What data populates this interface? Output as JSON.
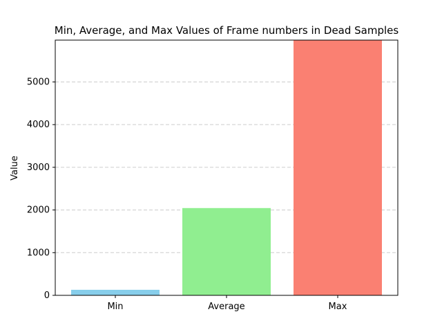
{
  "chart_data": {
    "type": "bar",
    "title": "Min, Average, and Max Values of Frame numbers in Dead Samples",
    "xlabel": "",
    "ylabel": "Value",
    "categories": [
      "Min",
      "Average",
      "Max"
    ],
    "values": [
      130,
      2045,
      5980
    ],
    "colors": [
      "#87CEEB",
      "#90EE90",
      "#FA8072"
    ],
    "y_ticks": [
      0,
      1000,
      2000,
      3000,
      4000,
      5000
    ],
    "y_tick_labels": [
      "0",
      "1000",
      "2000",
      "3000",
      "4000",
      "5000"
    ],
    "ylim": [
      0,
      5980
    ],
    "grid": {
      "axis": "y",
      "style": "dashed",
      "color": "#cccccc"
    },
    "legend": "none"
  }
}
